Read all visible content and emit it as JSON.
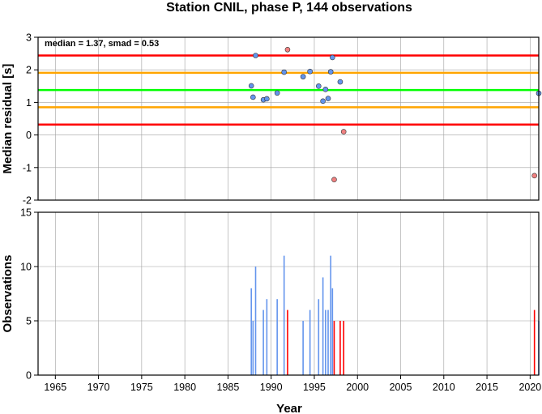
{
  "title": "Station CNIL, phase P, 144 observations",
  "chart_data": [
    {
      "type": "scatter",
      "ylabel": "Median residual [s]",
      "annotation": "median = 1.37, smad = 0.53",
      "xlim": [
        1963,
        2021
      ],
      "ylim": [
        -2,
        3
      ],
      "yticks": [
        "-2",
        "-1",
        "0",
        "1",
        "2",
        "3"
      ],
      "grid": true,
      "lines": [
        {
          "y": 2.44,
          "color": "#ff0000"
        },
        {
          "y": 1.91,
          "color": "#ffa500"
        },
        {
          "y": 1.38,
          "color": "#00ff00"
        },
        {
          "y": 0.85,
          "color": "#ffa500"
        },
        {
          "y": 0.32,
          "color": "#ff0000"
        }
      ],
      "series": [
        {
          "color": "#6495ed",
          "points": [
            {
              "x": 1987.7,
              "y": 1.51
            },
            {
              "x": 1987.9,
              "y": 1.16
            },
            {
              "x": 1988.2,
              "y": 2.44
            },
            {
              "x": 1989.1,
              "y": 1.08
            },
            {
              "x": 1989.5,
              "y": 1.11
            },
            {
              "x": 1990.7,
              "y": 1.29
            },
            {
              "x": 1991.5,
              "y": 1.93
            },
            {
              "x": 1993.7,
              "y": 1.79
            },
            {
              "x": 1994.5,
              "y": 1.95
            },
            {
              "x": 1995.5,
              "y": 1.5
            },
            {
              "x": 1996.0,
              "y": 1.04
            },
            {
              "x": 1996.3,
              "y": 1.4
            },
            {
              "x": 1996.6,
              "y": 1.12
            },
            {
              "x": 1996.9,
              "y": 1.94
            },
            {
              "x": 1997.1,
              "y": 2.38
            },
            {
              "x": 1998.0,
              "y": 1.63
            },
            {
              "x": 2021.0,
              "y": 1.28
            }
          ]
        },
        {
          "color": "#f08080",
          "points": [
            {
              "x": 1991.9,
              "y": 2.62
            },
            {
              "x": 1997.3,
              "y": -1.37
            },
            {
              "x": 1998.4,
              "y": 0.1
            },
            {
              "x": 2020.5,
              "y": -1.25
            }
          ]
        }
      ]
    },
    {
      "type": "bar",
      "xlabel": "Year",
      "ylabel": "Observations",
      "xlim": [
        1963,
        2021
      ],
      "ylim": [
        0,
        15
      ],
      "yticks": [
        "0",
        "5",
        "10",
        "15"
      ],
      "xticks": [
        "1965",
        "1970",
        "1975",
        "1980",
        "1985",
        "1990",
        "1995",
        "2000",
        "2005",
        "2010",
        "2015",
        "2020"
      ],
      "grid": true,
      "series": [
        {
          "color": "#6495ed",
          "bars": [
            {
              "x": 1987.7,
              "y": 8
            },
            {
              "x": 1987.9,
              "y": 5
            },
            {
              "x": 1988.2,
              "y": 10
            },
            {
              "x": 1989.1,
              "y": 6
            },
            {
              "x": 1989.5,
              "y": 7
            },
            {
              "x": 1990.7,
              "y": 7
            },
            {
              "x": 1991.5,
              "y": 11
            },
            {
              "x": 1993.7,
              "y": 5
            },
            {
              "x": 1994.5,
              "y": 6
            },
            {
              "x": 1995.5,
              "y": 7
            },
            {
              "x": 1996.0,
              "y": 9
            },
            {
              "x": 1996.3,
              "y": 6
            },
            {
              "x": 1996.6,
              "y": 6
            },
            {
              "x": 1996.9,
              "y": 11
            },
            {
              "x": 1997.1,
              "y": 8
            },
            {
              "x": 2021.0,
              "y": 5
            }
          ]
        },
        {
          "color": "#ff0000",
          "bars": [
            {
              "x": 1991.9,
              "y": 6
            },
            {
              "x": 1997.3,
              "y": 5
            },
            {
              "x": 1998.0,
              "y": 5
            },
            {
              "x": 1998.4,
              "y": 5
            },
            {
              "x": 2020.5,
              "y": 6
            }
          ]
        }
      ]
    }
  ]
}
